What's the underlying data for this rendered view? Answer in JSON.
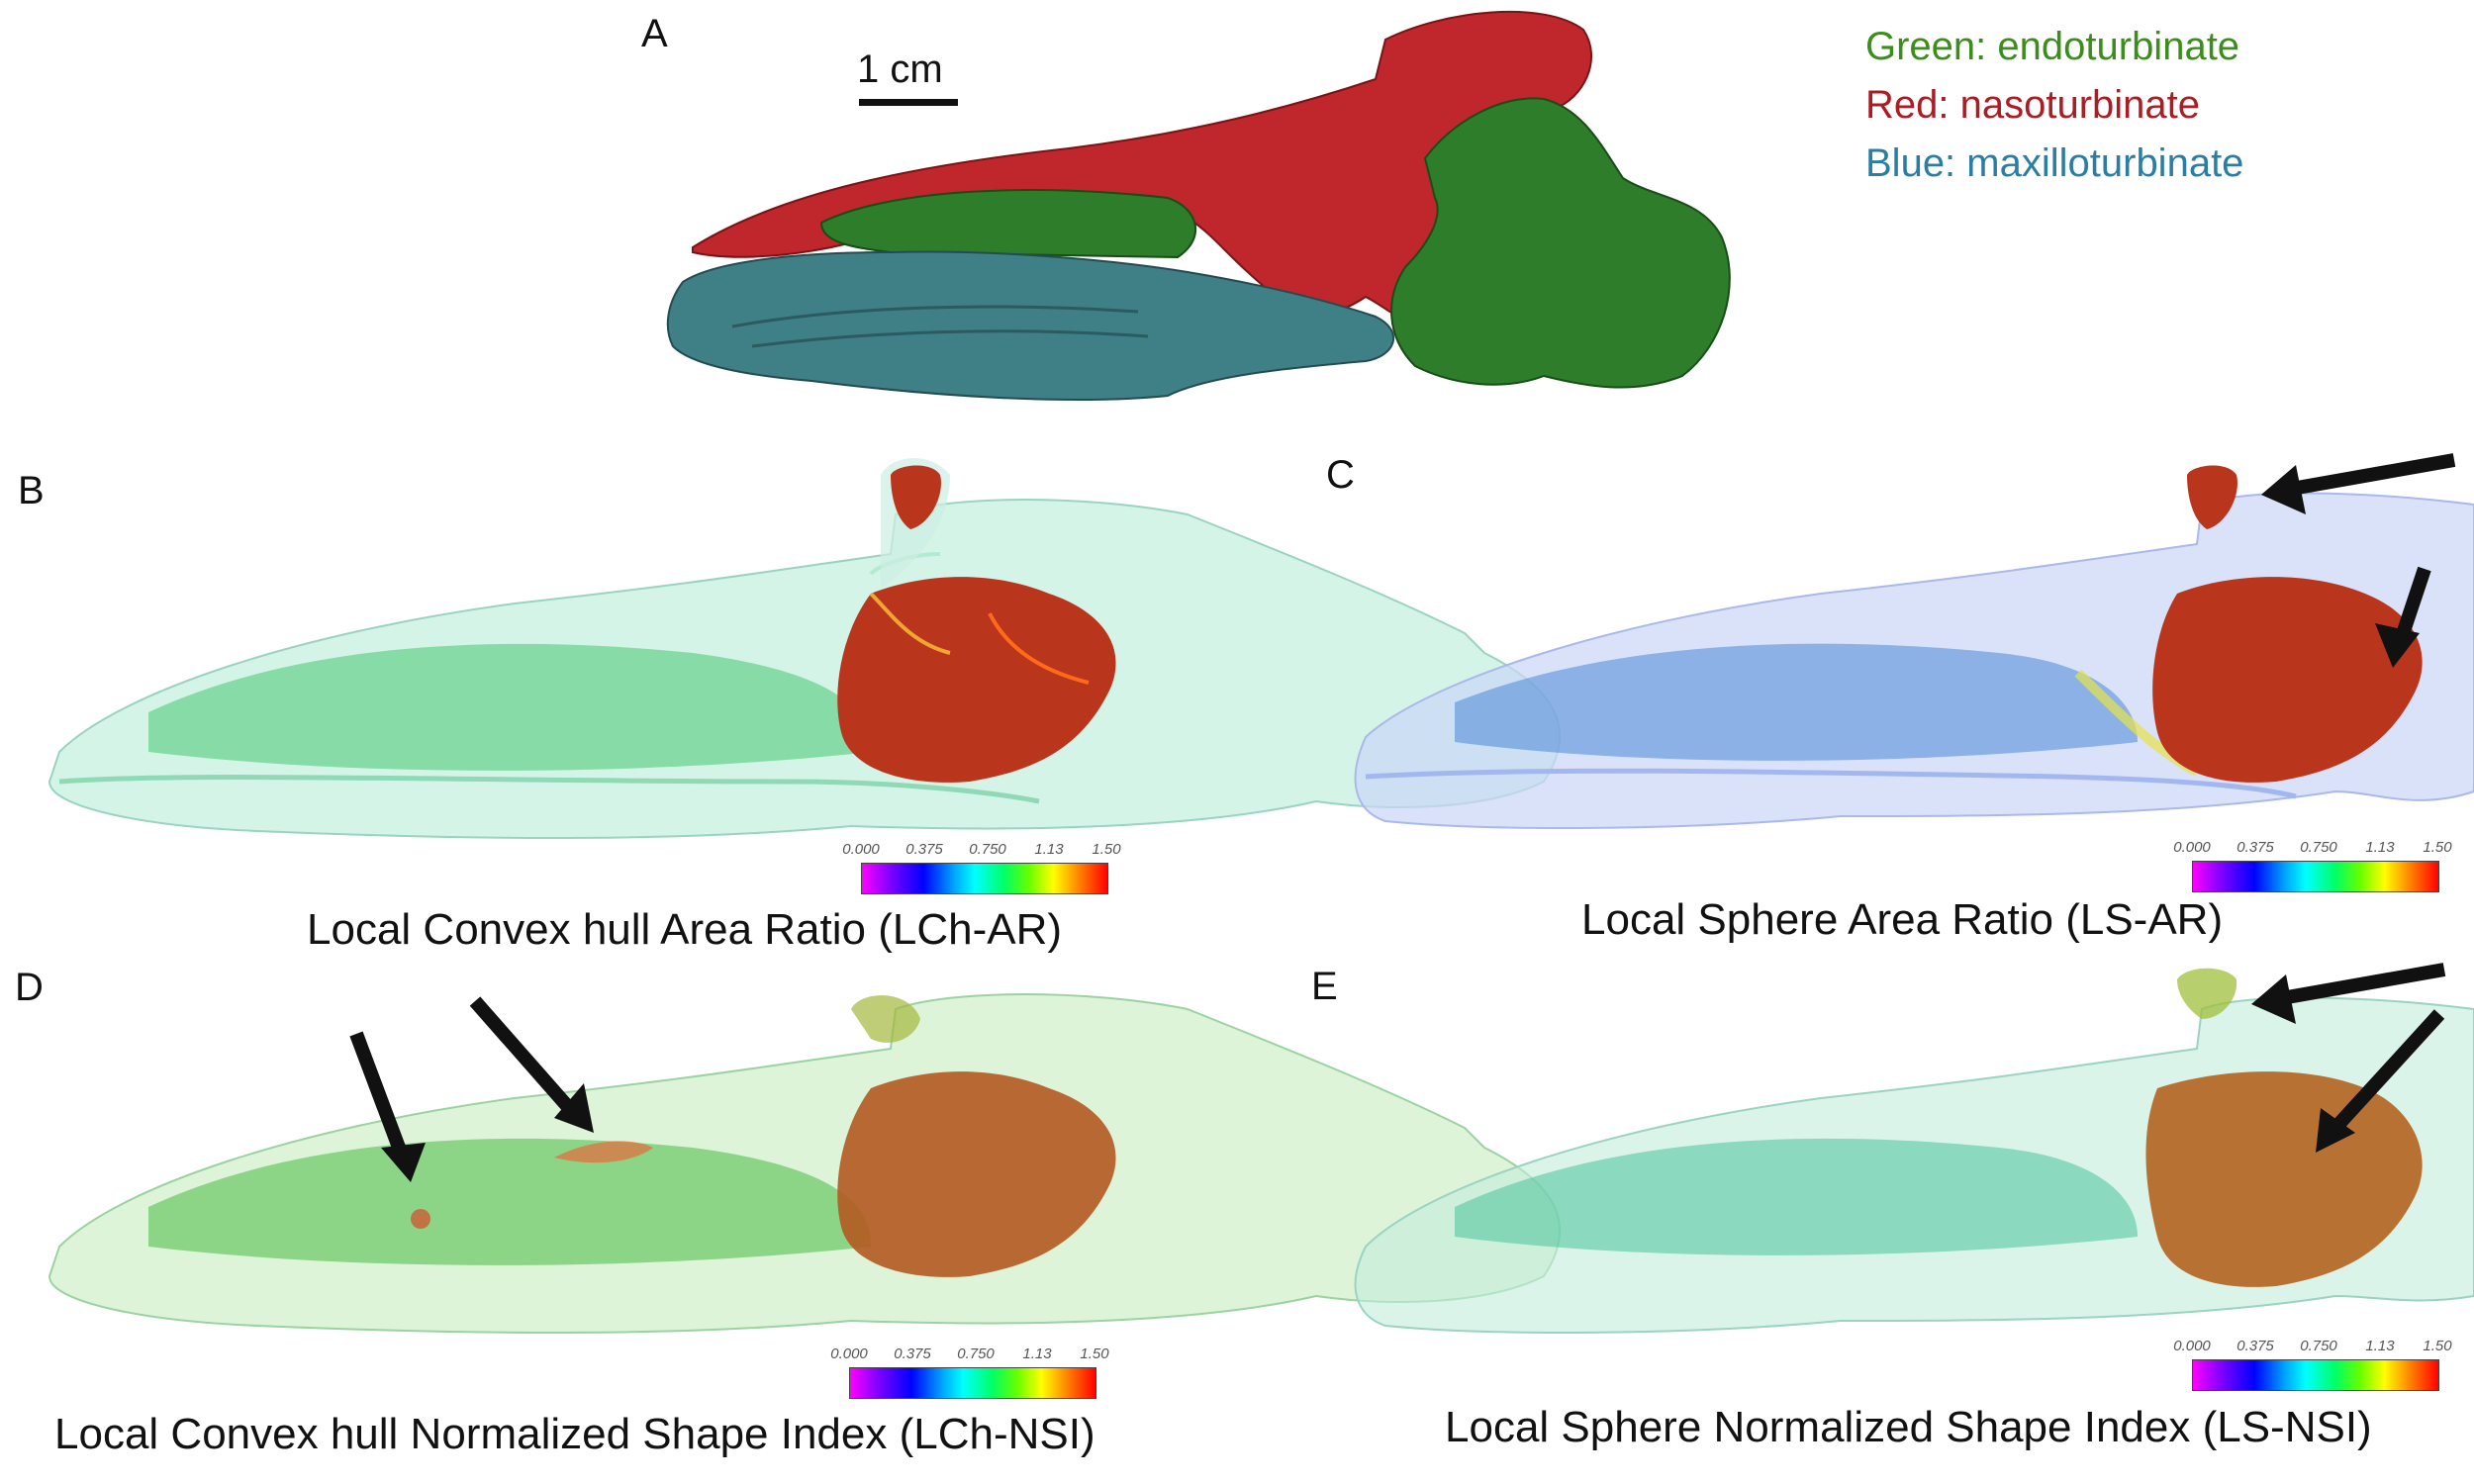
{
  "panels": {
    "a": {
      "letter": "A",
      "scale_bar_label": "1 cm"
    },
    "b": {
      "letter": "B",
      "caption": "Local Convex hull Area Ratio (LCh-AR)"
    },
    "c": {
      "letter": "C",
      "caption": "Local Sphere Area Ratio (LS-AR)"
    },
    "d": {
      "letter": "D",
      "caption": "Local Convex hull Normalized Shape Index (LCh-NSI)"
    },
    "e": {
      "letter": "E",
      "caption": "Local Sphere Normalized Shape Index (LS-NSI)"
    }
  },
  "legend": {
    "items": [
      {
        "text": "Green: endoturbinate",
        "color": "#3b8e1c"
      },
      {
        "text": "Red: nasoturbinate",
        "color": "#a81e24"
      },
      {
        "text": "Blue: maxilloturbinate",
        "color": "#2a7ea3"
      }
    ]
  },
  "colorbar": {
    "ticks": [
      "0.000",
      "0.375",
      "0.750",
      "1.13",
      "1.50"
    ]
  },
  "colors": {
    "green": "#2e7d2a",
    "red": "#c0272d",
    "blue": "#3f7f86",
    "heat_red": "#b9361d",
    "arrow": "#111111"
  }
}
